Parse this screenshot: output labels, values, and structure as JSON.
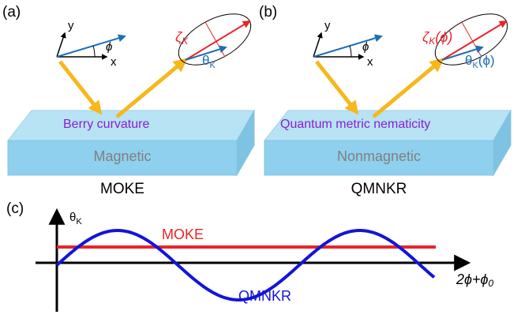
{
  "panel_a": {
    "label": "(a)",
    "y_axis": "y",
    "x_axis": "x",
    "angle": "ϕ",
    "kerr_ellipticity": {
      "symbol": "ζ",
      "subscript": "K"
    },
    "kerr_rotation": {
      "symbol": "θ",
      "subscript": "K"
    },
    "surface_text": "Berry curvature",
    "material": "Magnetic",
    "caption": "MOKE"
  },
  "panel_b": {
    "label": "(b)",
    "y_axis": "y",
    "x_axis": "x",
    "angle": "ϕ",
    "kerr_ellipticity": {
      "symbol": "ζ",
      "subscript": "K",
      "argument": "(ϕ)"
    },
    "kerr_rotation": {
      "symbol": "θ",
      "subscript": "K",
      "argument": "(ϕ)"
    },
    "surface_text": "Quantum metric nematicity",
    "material": "Nonmagnetic",
    "caption": "QMNKR"
  },
  "panel_c": {
    "label": "(c)",
    "y_axis": {
      "symbol": "θ",
      "subscript": "K"
    },
    "x_axis": {
      "main": "2ϕ+ϕ",
      "subscript": "0"
    },
    "moke_label": "MOKE",
    "qmnkr_label": "QMNKR"
  }
}
